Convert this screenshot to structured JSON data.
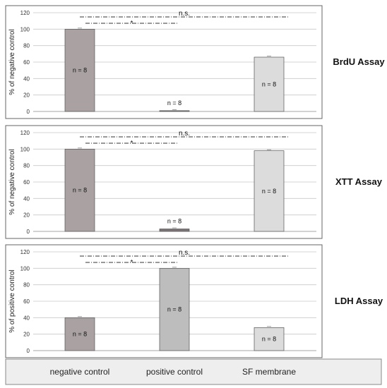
{
  "colors": {
    "negative": "#aaa2a2",
    "positive": "#bdbdbd",
    "sf": "#dcdcdc",
    "positive_small": "#7d7575",
    "panel_border": "#666666",
    "grid": "#c9c9c9",
    "legend_bg": "#eeeeee"
  },
  "categories": [
    "negative control",
    "positive control",
    "SF membrane"
  ],
  "chart_data": [
    {
      "type": "bar",
      "assay": "BrdU Assay",
      "ylabel": "% of negative control",
      "ylim": [
        0,
        120
      ],
      "yticks": [
        0,
        20,
        40,
        60,
        80,
        100,
        120
      ],
      "categories": [
        "negative control",
        "positive control",
        "SF membrane"
      ],
      "values": [
        100,
        1,
        66
      ],
      "sample_labels": [
        "n = 8",
        "n = 8",
        "n = 8"
      ],
      "significance": [
        {
          "from": "negative control",
          "to": "SF membrane",
          "label": "n.s."
        },
        {
          "from": "negative control",
          "to": "positive control",
          "label": "*"
        }
      ]
    },
    {
      "type": "bar",
      "assay": "XTT Assay",
      "ylabel": "% of negative control",
      "ylim": [
        0,
        120
      ],
      "yticks": [
        0,
        20,
        40,
        60,
        80,
        100,
        120
      ],
      "categories": [
        "negative control",
        "positive control",
        "SF membrane"
      ],
      "values": [
        100,
        3,
        98
      ],
      "sample_labels": [
        "n = 8",
        "n = 8",
        "n = 8"
      ],
      "significance": [
        {
          "from": "negative control",
          "to": "SF membrane",
          "label": "n.s."
        },
        {
          "from": "negative control",
          "to": "positive control",
          "label": "*"
        }
      ]
    },
    {
      "type": "bar",
      "assay": "LDH Assay",
      "ylabel": "% of positive control",
      "ylim": [
        0,
        120
      ],
      "yticks": [
        0,
        20,
        40,
        60,
        80,
        100,
        120
      ],
      "categories": [
        "negative control",
        "positive control",
        "SF membrane"
      ],
      "values": [
        40,
        100,
        28
      ],
      "sample_labels": [
        "n = 8",
        "n = 8",
        "n = 8"
      ],
      "significance": [
        {
          "from": "negative control",
          "to": "SF membrane",
          "label": "n.s."
        },
        {
          "from": "negative control",
          "to": "positive control",
          "label": "*"
        }
      ]
    }
  ]
}
